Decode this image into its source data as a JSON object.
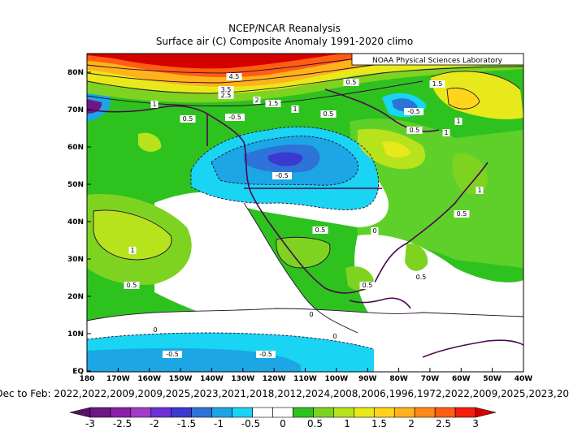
{
  "header": {
    "title": "NCEP/NCAR Reanalysis",
    "subtitle": "Surface air (C) Composite Anomaly 1991-2020 climo",
    "credit": "NOAA Physical Sciences Laboratory"
  },
  "axes": {
    "lat_labels": [
      "80N",
      "70N",
      "60N",
      "50N",
      "40N",
      "30N",
      "20N",
      "10N",
      "EQ"
    ],
    "lon_labels": [
      "180",
      "170W",
      "160W",
      "150W",
      "140W",
      "130W",
      "120W",
      "110W",
      "100W",
      "90W",
      "80W",
      "70W",
      "60W",
      "50W",
      "40W"
    ]
  },
  "composite_caption": "Dec to Feb: 2022,2022,2009,2009,2025,2023,2021,2018,2012,2024,2008,2006,1996,1972,2022,2009,2025,2023,20",
  "colorbar": {
    "ticks": [
      "-3",
      "-2.5",
      "-2",
      "-1.5",
      "-1",
      "-0.5",
      "0",
      "0.5",
      "1",
      "1.5",
      "2",
      "2.5",
      "3"
    ],
    "colors": [
      "#5a0f6b",
      "#6f1785",
      "#8a1fa6",
      "#a23bc8",
      "#6f2fd6",
      "#3a3ad0",
      "#2d73d8",
      "#1ca6e6",
      "#19d4f2",
      "#ffffff",
      "#ffffff",
      "#2ec21e",
      "#7ed321",
      "#b7e31c",
      "#e8e91a",
      "#ffd41b",
      "#ffb21a",
      "#ff8a17",
      "#ff5d12",
      "#f5200c",
      "#d40000"
    ]
  },
  "contour_labels": [
    "4.5",
    "3.5",
    "2.5",
    "2",
    "1.5",
    "1",
    "0.5",
    "-0.5",
    "1",
    "0.5",
    "1.5",
    "0.5",
    "1",
    "0.5",
    "1",
    "1",
    "0.5",
    "-0.5",
    "-0.5",
    "0.5",
    "1",
    "0.5",
    "0.5",
    "0.5",
    "0",
    "0",
    "0",
    "0",
    "-0.5",
    "-0.5"
  ]
}
